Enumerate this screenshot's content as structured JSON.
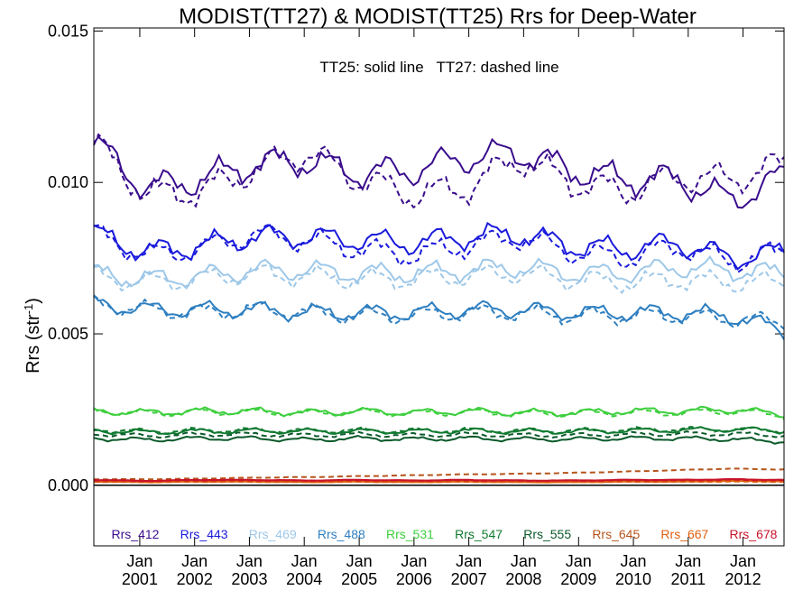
{
  "chart_data": {
    "type": "line",
    "title": "MODIST(TT27) & MODIST(TT25)  Rrs for Deep-Water",
    "annotation": "TT25: solid line   TT27: dashed line",
    "xlabel": "",
    "ylabel": "Rrs (str",
    "ylabel_sup": "-1",
    "ylabel_close": ")",
    "xlim": [
      "2000-03-01",
      "2012-09-30"
    ],
    "ylim": [
      -0.002,
      0.0151
    ],
    "yticks": [
      {
        "value": 0.0,
        "label": "0.000"
      },
      {
        "value": 0.005,
        "label": "0.005"
      },
      {
        "value": 0.01,
        "label": "0.010"
      },
      {
        "value": 0.015,
        "label": "0.015"
      }
    ],
    "xticks": [
      {
        "date": "2001-01-01",
        "month": "Jan",
        "year": "2001"
      },
      {
        "date": "2002-01-01",
        "month": "Jan",
        "year": "2002"
      },
      {
        "date": "2003-01-01",
        "month": "Jan",
        "year": "2003"
      },
      {
        "date": "2004-01-01",
        "month": "Jan",
        "year": "2004"
      },
      {
        "date": "2005-01-01",
        "month": "Jan",
        "year": "2005"
      },
      {
        "date": "2006-01-01",
        "month": "Jan",
        "year": "2006"
      },
      {
        "date": "2007-01-01",
        "month": "Jan",
        "year": "2007"
      },
      {
        "date": "2008-01-01",
        "month": "Jan",
        "year": "2008"
      },
      {
        "date": "2009-01-01",
        "month": "Jan",
        "year": "2009"
      },
      {
        "date": "2010-01-01",
        "month": "Jan",
        "year": "2010"
      },
      {
        "date": "2011-01-01",
        "month": "Jan",
        "year": "2011"
      },
      {
        "date": "2012-01-01",
        "month": "Jan",
        "year": "2012"
      }
    ],
    "reference_line": 0.0,
    "legend_position": "bottom",
    "series": [
      {
        "name": "Rrs_412",
        "color": "#3a0d8c",
        "solid": [
          0.0113,
          0.0098,
          0.0101,
          0.0106,
          0.0107,
          0.0103,
          0.0104,
          0.0108,
          0.011,
          0.0104,
          0.0101,
          0.0101,
          0.0094,
          0.0102
        ],
        "dashed": [
          0.0113,
          0.0096,
          0.0097,
          0.0104,
          0.011,
          0.0101,
          0.0096,
          0.0098,
          0.0108,
          0.01,
          0.0097,
          0.0102,
          0.0101,
          0.0106
        ]
      },
      {
        "name": "Rrs_443",
        "color": "#1a1adc",
        "solid": [
          0.0083,
          0.0077,
          0.0079,
          0.0082,
          0.0082,
          0.0081,
          0.008,
          0.0082,
          0.0083,
          0.0079,
          0.0078,
          0.008,
          0.0075,
          0.0077
        ],
        "dashed": [
          0.0083,
          0.0076,
          0.0078,
          0.0083,
          0.0081,
          0.0078,
          0.0076,
          0.0079,
          0.0082,
          0.0077,
          0.0075,
          0.0079,
          0.0074,
          0.0077
        ]
      },
      {
        "name": "Rrs_469",
        "color": "#9ec8e8",
        "solid": [
          0.007,
          0.0068,
          0.0069,
          0.0071,
          0.0071,
          0.007,
          0.007,
          0.0071,
          0.0072,
          0.007,
          0.007,
          0.0072,
          0.0071,
          0.007
        ],
        "dashed": [
          0.0069,
          0.0067,
          0.0068,
          0.007,
          0.0069,
          0.0068,
          0.0068,
          0.0069,
          0.007,
          0.0068,
          0.0067,
          0.0068,
          0.0067,
          0.0067
        ]
      },
      {
        "name": "Rrs_488",
        "color": "#2e7fc0",
        "solid": [
          0.006,
          0.0058,
          0.0058,
          0.0058,
          0.0057,
          0.0057,
          0.0057,
          0.0058,
          0.0058,
          0.0057,
          0.0057,
          0.0057,
          0.0056,
          0.0051
        ],
        "dashed": [
          0.006,
          0.0058,
          0.0057,
          0.0058,
          0.0057,
          0.0056,
          0.0056,
          0.0057,
          0.0057,
          0.0056,
          0.0056,
          0.0056,
          0.0055,
          0.0054
        ]
      },
      {
        "name": "Rrs_531",
        "color": "#3ecf3e",
        "solid": [
          0.00245,
          0.0024,
          0.00245,
          0.00245,
          0.0024,
          0.00245,
          0.0024,
          0.00245,
          0.0024,
          0.0024,
          0.00245,
          0.00245,
          0.0025,
          0.00235
        ],
        "dashed": [
          0.00245,
          0.00238,
          0.00242,
          0.00242,
          0.00238,
          0.00242,
          0.00238,
          0.00242,
          0.00238,
          0.00238,
          0.0024,
          0.0024,
          0.00245,
          0.00232
        ]
      },
      {
        "name": "Rrs_547",
        "color": "#107a30",
        "solid": [
          0.0018,
          0.00175,
          0.00178,
          0.0018,
          0.00178,
          0.00178,
          0.00178,
          0.0018,
          0.00178,
          0.00178,
          0.0018,
          0.00182,
          0.00185,
          0.0018
        ],
        "dashed": [
          0.00185,
          0.00178,
          0.00182,
          0.00182,
          0.0018,
          0.00182,
          0.0018,
          0.00182,
          0.0018,
          0.0018,
          0.00183,
          0.00185,
          0.00185,
          0.00182
        ]
      },
      {
        "name": "Rrs_555",
        "color": "#0a5a2a",
        "solid": [
          0.00155,
          0.0015,
          0.00155,
          0.00155,
          0.0015,
          0.00155,
          0.00152,
          0.00155,
          0.00152,
          0.00152,
          0.00155,
          0.00155,
          0.00152,
          0.00145
        ],
        "dashed": [
          0.0017,
          0.00163,
          0.00168,
          0.00168,
          0.00165,
          0.00168,
          0.00165,
          0.00168,
          0.00165,
          0.00165,
          0.00168,
          0.0017,
          0.0017,
          0.00165
        ]
      },
      {
        "name": "Rrs_645",
        "color": "#b5541b",
        "solid": [
          0.00015,
          0.00012,
          0.00015,
          0.00015,
          0.00013,
          0.00015,
          0.00013,
          0.00015,
          0.00013,
          0.00013,
          0.00015,
          0.00015,
          0.00016,
          0.00015
        ],
        "dashed": [
          0.0002,
          0.0002,
          0.00022,
          0.00025,
          0.00027,
          0.0003,
          0.00033,
          0.00036,
          0.00038,
          0.00041,
          0.00045,
          0.0005,
          0.00055,
          0.00052
        ]
      },
      {
        "name": "Rrs_667",
        "color": "#e06010",
        "solid": [
          0.00012,
          0.0001,
          0.00012,
          0.00012,
          0.0001,
          0.00012,
          0.0001,
          0.00012,
          0.0001,
          0.0001,
          0.00012,
          0.00012,
          0.00014,
          0.00013
        ],
        "dashed": [
          0.00011,
          0.0001,
          0.00011,
          0.00011,
          0.0001,
          0.00011,
          0.0001,
          0.00011,
          0.0001,
          0.0001,
          0.00011,
          0.00011,
          0.00012,
          0.00011
        ]
      },
      {
        "name": "Rrs_678",
        "color": "#c8142a",
        "solid": [
          0.00018,
          0.00015,
          0.00018,
          0.00018,
          0.00016,
          0.00018,
          0.00016,
          0.00018,
          0.00016,
          0.00016,
          0.00018,
          0.00018,
          0.0002,
          0.00018
        ],
        "dashed": [
          0.00016,
          0.00014,
          0.00016,
          0.00016,
          0.00015,
          0.00016,
          0.00015,
          0.00016,
          0.00015,
          0.00015,
          0.00016,
          0.00016,
          0.00018,
          0.00016
        ]
      }
    ]
  }
}
